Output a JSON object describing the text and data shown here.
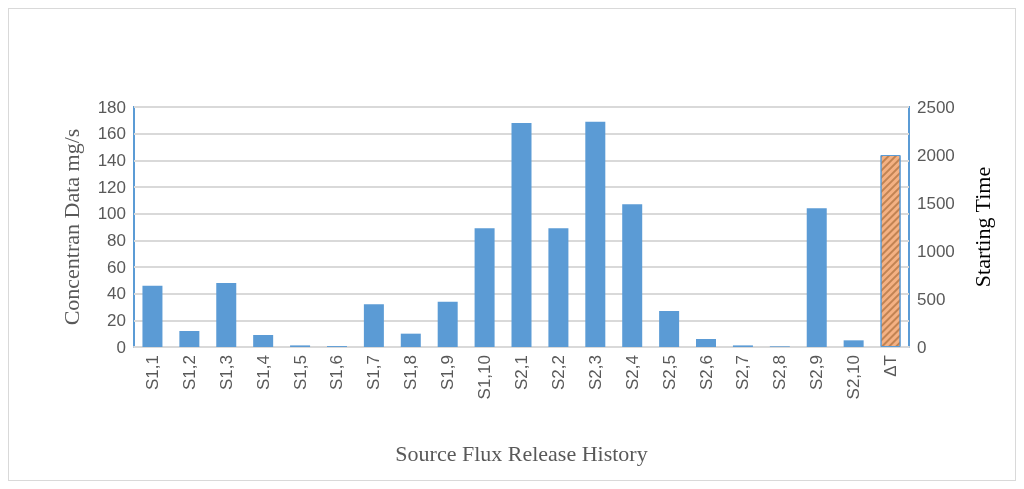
{
  "chart_data": {
    "type": "bar",
    "xlabel": "Source Flux Release History",
    "ylabel": "Concentran Data mg/s",
    "y2label": "Starting Time",
    "categories": [
      "S1,1",
      "S1,2",
      "S1,3",
      "S1,4",
      "S1,5",
      "S1,6",
      "S1,7",
      "S1,8",
      "S1,9",
      "S1,10",
      "S2,1",
      "S2,2",
      "S2,3",
      "S2,4",
      "S2,5",
      "S2,6",
      "S2,7",
      "S2,8",
      "S2,9",
      "S2,10",
      "ΔT"
    ],
    "series": [
      {
        "color": "#5b9bd5",
        "values": [
          46,
          12,
          48,
          9,
          1.2,
          0.7,
          32,
          10,
          34,
          89,
          168,
          89,
          169,
          107,
          27,
          6,
          1.2,
          0.5,
          104,
          5,
          null
        ]
      },
      {
        "color": "#f4b183",
        "axis": "y2",
        "values": [
          null,
          null,
          null,
          null,
          null,
          null,
          null,
          null,
          null,
          null,
          null,
          null,
          null,
          null,
          null,
          null,
          null,
          null,
          null,
          null,
          2000
        ]
      }
    ],
    "ylim": [
      0,
      180
    ],
    "yticks": [
      0,
      20,
      40,
      60,
      80,
      100,
      120,
      140,
      160,
      180
    ],
    "y2lim": [
      0,
      2500
    ],
    "y2ticks": [
      0,
      500,
      1000,
      1500,
      2000,
      2500
    ],
    "grid": "y"
  }
}
